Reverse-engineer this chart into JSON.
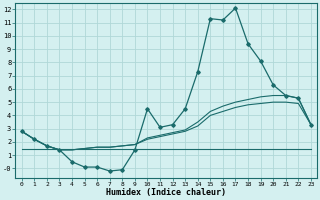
{
  "xlabel": "Humidex (Indice chaleur)",
  "x": [
    0,
    1,
    2,
    3,
    4,
    5,
    6,
    7,
    8,
    9,
    10,
    11,
    12,
    13,
    14,
    15,
    16,
    17,
    18,
    19,
    20,
    21,
    22,
    23
  ],
  "line1": [
    2.8,
    2.2,
    1.7,
    1.4,
    0.5,
    0.1,
    0.1,
    -0.2,
    -0.1,
    1.4,
    4.5,
    3.1,
    3.3,
    4.5,
    7.3,
    11.3,
    11.2,
    12.1,
    9.4,
    8.1,
    6.3,
    5.5,
    5.3,
    3.3
  ],
  "line2": [
    2.8,
    2.2,
    1.7,
    1.4,
    1.4,
    1.5,
    1.6,
    1.6,
    1.7,
    1.8,
    2.3,
    2.5,
    2.7,
    2.9,
    3.5,
    4.3,
    4.7,
    5.0,
    5.2,
    5.4,
    5.5,
    5.5,
    5.3,
    3.3
  ],
  "line3": [
    2.8,
    2.2,
    1.7,
    1.4,
    1.4,
    1.5,
    1.6,
    1.6,
    1.7,
    1.8,
    2.2,
    2.4,
    2.6,
    2.8,
    3.2,
    4.0,
    4.3,
    4.6,
    4.8,
    4.9,
    5.0,
    5.0,
    4.9,
    3.3
  ],
  "line4": [
    1.5,
    1.5,
    1.5,
    1.5,
    1.5,
    1.5,
    1.5,
    1.5,
    1.5,
    1.5,
    1.5,
    1.5,
    1.5,
    1.5,
    1.5,
    1.5,
    1.5,
    1.5,
    1.5,
    1.5,
    1.5,
    1.5,
    1.5,
    1.5
  ],
  "color": "#1a6b6b",
  "bg_color": "#d4f0f0",
  "grid_color": "#b0d8d8",
  "ylim": [
    -0.7,
    12.5
  ],
  "xlim": [
    -0.5,
    23.5
  ],
  "yticks": [
    0,
    1,
    2,
    3,
    4,
    5,
    6,
    7,
    8,
    9,
    10,
    11,
    12
  ],
  "ytick_labels": [
    "-0",
    "1",
    "2",
    "3",
    "4",
    "5",
    "6",
    "7",
    "8",
    "9",
    "10",
    "11",
    "12"
  ],
  "xticks": [
    0,
    1,
    2,
    3,
    4,
    5,
    6,
    7,
    8,
    9,
    10,
    11,
    12,
    13,
    14,
    15,
    16,
    17,
    18,
    19,
    20,
    21,
    22,
    23
  ]
}
